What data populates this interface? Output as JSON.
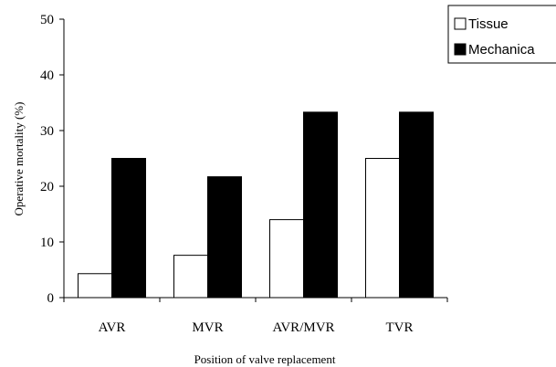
{
  "chart_data": {
    "type": "bar",
    "categories": [
      "AVR",
      "MVR",
      "AVR/MVR",
      "TVR"
    ],
    "series": [
      {
        "name": "Tissue",
        "values": [
          4.3,
          7.6,
          14,
          25
        ],
        "color": "#ffffff"
      },
      {
        "name": "Mechanica",
        "values": [
          25,
          21.7,
          33.3,
          33.3
        ],
        "color": "#000000"
      }
    ],
    "title": "",
    "xlabel": "Position of valve replacement",
    "ylabel": "Operative mortality (%)",
    "ylim": [
      0,
      50
    ],
    "yticks": [
      "0",
      "10",
      "20",
      "30",
      "40",
      "50"
    ],
    "grid": false,
    "legend_position": "top-right"
  }
}
